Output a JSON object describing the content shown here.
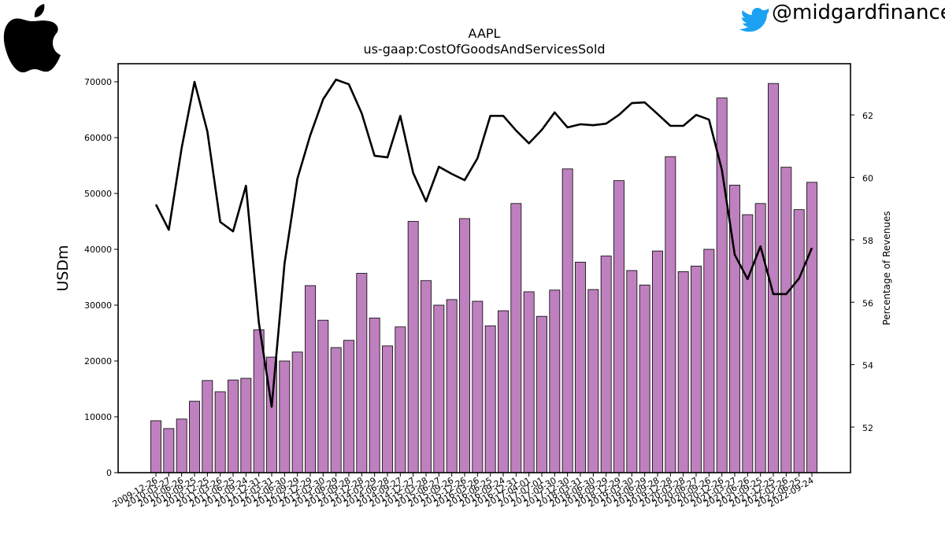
{
  "chart_data": {
    "type": "bar-line",
    "title": "AAPL",
    "subtitle": "us-gaap:CostOfGoodsAndServicesSold",
    "handle": "@midgardfinance",
    "y_label": "USDm",
    "y2_label": "Percentage of Revenues",
    "categories": [
      "2009-12-26",
      "2010-03-27",
      "2010-06-26",
      "2010-09-25",
      "2010-12-25",
      "2011-03-26",
      "2011-06-25",
      "2011-09-24",
      "2011-12-31",
      "2012-03-31",
      "2012-06-30",
      "2012-09-29",
      "2012-12-29",
      "2013-03-30",
      "2013-06-29",
      "2013-09-28",
      "2013-12-28",
      "2014-03-29",
      "2014-06-28",
      "2014-09-27",
      "2014-12-27",
      "2015-03-28",
      "2015-06-27",
      "2015-09-26",
      "2015-12-26",
      "2016-03-26",
      "2016-06-25",
      "2016-09-24",
      "2016-12-31",
      "2017-04-01",
      "2017-07-01",
      "2017-09-30",
      "2017-12-30",
      "2018-03-31",
      "2018-06-30",
      "2018-09-29",
      "2018-12-29",
      "2019-03-30",
      "2019-06-29",
      "2019-09-28",
      "2019-12-28",
      "2020-03-28",
      "2020-06-27",
      "2020-09-26",
      "2020-12-26",
      "2021-03-27",
      "2021-06-26",
      "2021-09-25",
      "2021-12-25",
      "2022-03-26",
      "2022-06-25",
      "2022-09-24"
    ],
    "series": [
      {
        "type": "bar",
        "color": "#bf80bf",
        "values": [
          9300,
          7900,
          9600,
          12800,
          16500,
          14500,
          16600,
          16900,
          25600,
          20700,
          20000,
          21600,
          33500,
          27300,
          22400,
          23700,
          35700,
          27700,
          22700,
          26100,
          45000,
          34400,
          30000,
          31000,
          45500,
          30700,
          26300,
          29000,
          48200,
          32400,
          28000,
          32700,
          54400,
          37700,
          32800,
          38800,
          52300,
          36200,
          33600,
          39700,
          56600,
          36000,
          37000,
          40000,
          67100,
          51500,
          46200,
          48200,
          69700,
          54700,
          47100,
          52000
        ]
      },
      {
        "type": "line",
        "axis": "y2",
        "color": "#000000",
        "values": [
          59.13,
          58.32,
          60.94,
          63.06,
          61.47,
          58.57,
          58.27,
          59.73,
          55.35,
          52.65,
          57.24,
          59.96,
          61.35,
          62.5,
          63.13,
          62.98,
          62.05,
          60.69,
          60.64,
          61.97,
          60.14,
          59.23,
          60.34,
          60.11,
          59.91,
          60.61,
          61.97,
          61.97,
          61.5,
          61.09,
          61.52,
          62.08,
          61.6,
          61.7,
          61.67,
          61.72,
          62.0,
          62.38,
          62.4,
          62.03,
          61.65,
          61.65,
          62.0,
          61.85,
          60.24,
          57.52,
          56.74,
          57.79,
          56.26,
          56.26,
          56.76,
          57.74
        ]
      }
    ],
    "ylim": [
      0,
      73240
    ],
    "yticks": [
      0,
      10000,
      20000,
      30000,
      40000,
      50000,
      60000,
      70000
    ],
    "y2lim": [
      50.54,
      63.64
    ],
    "y2ticks": [
      52,
      54,
      56,
      58,
      60,
      62
    ],
    "grid": false
  }
}
